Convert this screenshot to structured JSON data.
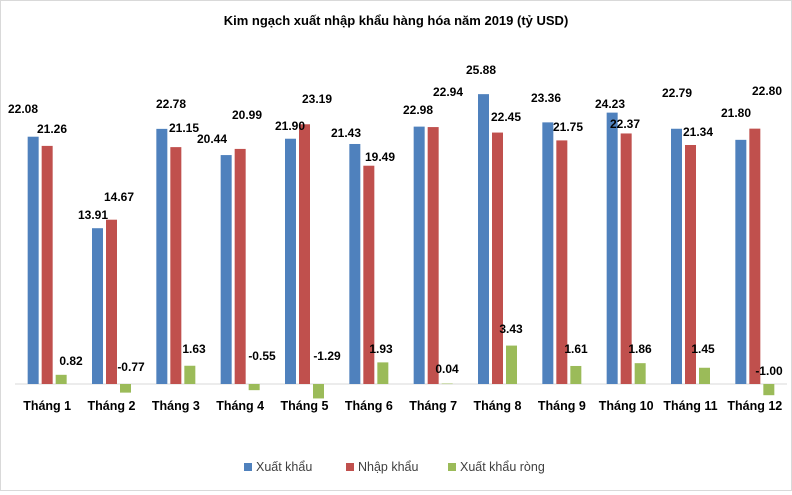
{
  "chart_data": {
    "type": "bar",
    "title": "Kim ngạch xuất nhập khẩu hàng hóa năm 2019 (tỷ USD)",
    "xlabel": "",
    "ylabel": "",
    "ylim": [
      -1.5,
      27
    ],
    "grid": false,
    "legend_position": "bottom",
    "categories": [
      "Tháng 1",
      "Tháng 2",
      "Tháng 3",
      "Tháng 4",
      "Tháng 5",
      "Tháng 6",
      "Tháng 7",
      "Tháng 8",
      "Tháng 9",
      "Tháng 10",
      "Tháng 11",
      "Tháng 12"
    ],
    "series": [
      {
        "name": "Xuất khẩu",
        "color": "#4f81bd",
        "values": [
          22.08,
          13.91,
          22.78,
          20.44,
          21.9,
          21.43,
          22.98,
          25.88,
          23.36,
          24.23,
          22.79,
          21.8
        ]
      },
      {
        "name": "Nhập khẩu",
        "color": "#c0504d",
        "values": [
          21.26,
          14.67,
          21.15,
          20.99,
          23.19,
          19.49,
          22.94,
          22.45,
          21.75,
          22.37,
          21.34,
          22.8
        ]
      },
      {
        "name": "Xuất khẩu ròng",
        "color": "#9bbb59",
        "values": [
          0.82,
          -0.77,
          1.63,
          -0.55,
          -1.29,
          1.93,
          0.04,
          3.43,
          1.61,
          1.86,
          1.45,
          -1.0
        ]
      }
    ]
  }
}
